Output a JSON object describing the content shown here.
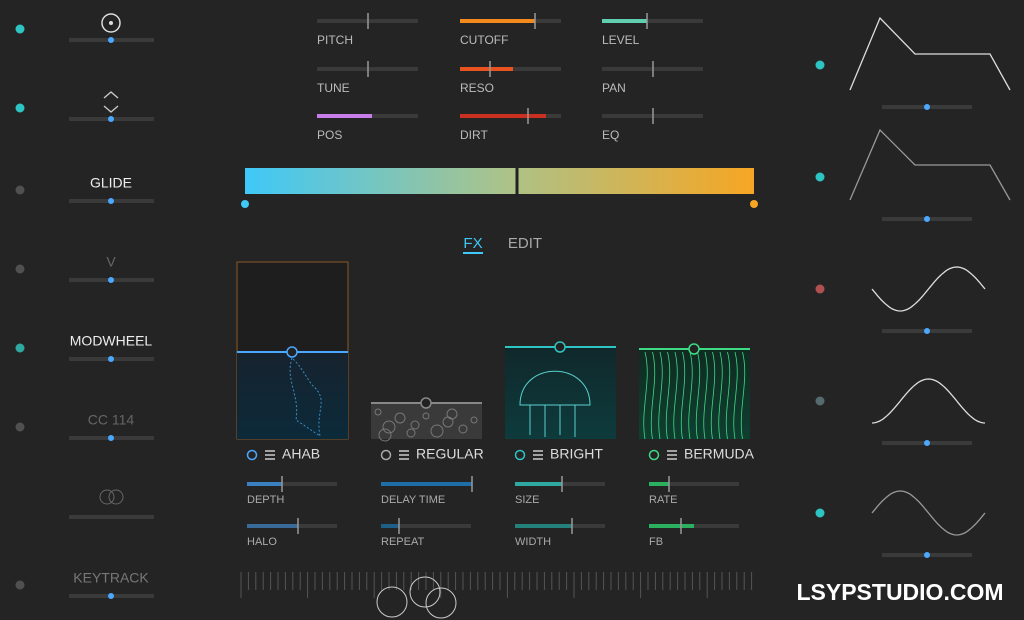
{
  "left_panel": {
    "labels": [
      "GLIDE",
      "V",
      "MODWHEEL",
      "CC 114",
      "KEYTRACK"
    ]
  },
  "params": {
    "columns": [
      [
        "PITCH",
        "TUNE",
        "POS"
      ],
      [
        "CUTOFF",
        "RESO",
        "DIRT"
      ],
      [
        "LEVEL",
        "PAN",
        "EQ"
      ]
    ]
  },
  "tabs": [
    "FX",
    "EDIT"
  ],
  "effects": [
    {
      "name": "AHAB",
      "params": [
        "DEPTH",
        "HALO"
      ]
    },
    {
      "name": "REGULAR",
      "params": [
        "DELAY TIME",
        "REPEAT"
      ]
    },
    {
      "name": "BRIGHT",
      "params": [
        "SIZE",
        "WIDTH"
      ]
    },
    {
      "name": "BERMUDA",
      "params": [
        "RATE",
        "FB"
      ]
    }
  ],
  "watermark": "LSYPSTUDIO.COM"
}
